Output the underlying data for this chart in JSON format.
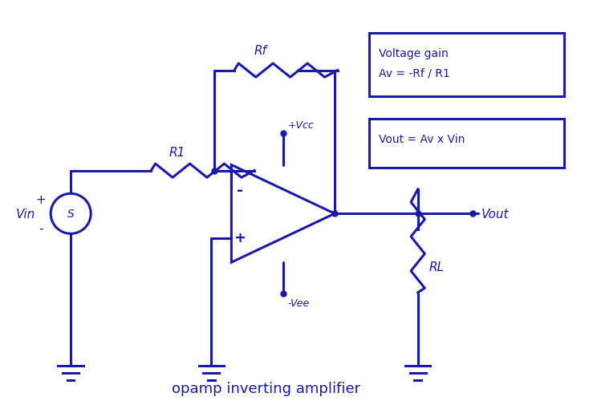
{
  "color": "#1a1aaa",
  "bg_color": "#ffffff",
  "title": "opamp inverting amplifier",
  "title_fontsize": 13,
  "label_fontsize": 11,
  "formula1": "Voltage gain",
  "formula2": "Av = -Rf / R1",
  "formula3": "Vout = Av x Vin",
  "lw": 2.2
}
